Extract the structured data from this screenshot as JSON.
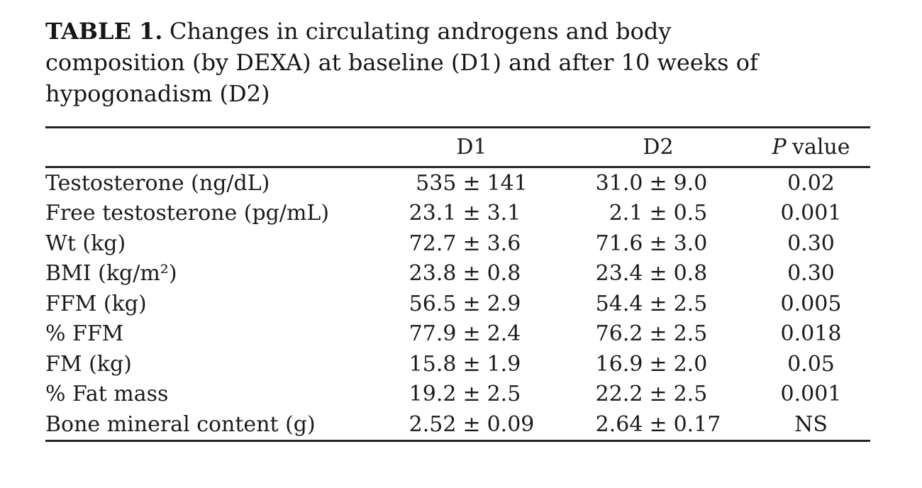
{
  "caption": {
    "label": "TABLE 1.",
    "line1_rest": "Changes in circulating androgens and body",
    "line2": "composition (by DEXA) at baseline (D1) and after 10 weeks of",
    "line3": "hypogonadism (D2)"
  },
  "table": {
    "pm_symbol": "±",
    "header": {
      "col_d1": "D1",
      "col_d2": "D2",
      "p_italic": "P",
      "p_rest": "value"
    },
    "rows": [
      {
        "label": "Testosterone (ng/dL)",
        "d1_mean": "535",
        "d1_sd": "141",
        "d2_mean": "31.0",
        "d2_sd": "9.0",
        "p": "0.02"
      },
      {
        "label": "Free testosterone (pg/mL)",
        "d1_mean": "23.1",
        "d1_sd": "3.1",
        "d2_mean": "2.1",
        "d2_sd": "0.5",
        "p": "0.001"
      },
      {
        "label": "Wt (kg)",
        "d1_mean": "72.7",
        "d1_sd": "3.6",
        "d2_mean": "71.6",
        "d2_sd": "3.0",
        "p": "0.30"
      },
      {
        "label": "BMI (kg/m²)",
        "d1_mean": "23.8",
        "d1_sd": "0.8",
        "d2_mean": "23.4",
        "d2_sd": "0.8",
        "p": "0.30"
      },
      {
        "label": "FFM (kg)",
        "d1_mean": "56.5",
        "d1_sd": "2.9",
        "d2_mean": "54.4",
        "d2_sd": "2.5",
        "p": "0.005"
      },
      {
        "label": "% FFM",
        "d1_mean": "77.9",
        "d1_sd": "2.4",
        "d2_mean": "76.2",
        "d2_sd": "2.5",
        "p": "0.018"
      },
      {
        "label": "FM (kg)",
        "d1_mean": "15.8",
        "d1_sd": "1.9",
        "d2_mean": "16.9",
        "d2_sd": "2.0",
        "p": "0.05"
      },
      {
        "label": "% Fat mass",
        "d1_mean": "19.2",
        "d1_sd": "2.5",
        "d2_mean": "22.2",
        "d2_sd": "2.5",
        "p": "0.001"
      },
      {
        "label": "Bone mineral content (g)",
        "d1_mean": "2.52",
        "d1_sd": "0.09",
        "d2_mean": "2.64",
        "d2_sd": "0.17",
        "p": "NS"
      }
    ]
  },
  "colors": {
    "text": "#1b1b1b",
    "rule": "#242424",
    "background": "#ffffff"
  },
  "chart_data": {
    "type": "table",
    "title": "TABLE 1. Changes in circulating androgens and body composition (by DEXA) at baseline (D1) and after 10 weeks of hypogonadism (D2)",
    "columns": [
      "",
      "D1",
      "D2",
      "P value"
    ],
    "rows": [
      [
        "Testosterone (ng/dL)",
        "535 ± 141",
        "31.0 ± 9.0",
        "0.02"
      ],
      [
        "Free testosterone (pg/mL)",
        "23.1 ± 3.1",
        "2.1 ± 0.5",
        "0.001"
      ],
      [
        "Wt (kg)",
        "72.7 ± 3.6",
        "71.6 ± 3.0",
        "0.30"
      ],
      [
        "BMI (kg/m²)",
        "23.8 ± 0.8",
        "23.4 ± 0.8",
        "0.30"
      ],
      [
        "FFM (kg)",
        "56.5 ± 2.9",
        "54.4 ± 2.5",
        "0.005"
      ],
      [
        "% FFM",
        "77.9 ± 2.4",
        "76.2 ± 2.5",
        "0.018"
      ],
      [
        "FM (kg)",
        "15.8 ± 1.9",
        "16.9 ± 2.0",
        "0.05"
      ],
      [
        "% Fat mass",
        "19.2 ± 2.5",
        "22.2 ± 2.5",
        "0.001"
      ],
      [
        "Bone mineral content (g)",
        "2.52 ± 0.09",
        "2.64 ± 0.17",
        "NS"
      ]
    ]
  }
}
